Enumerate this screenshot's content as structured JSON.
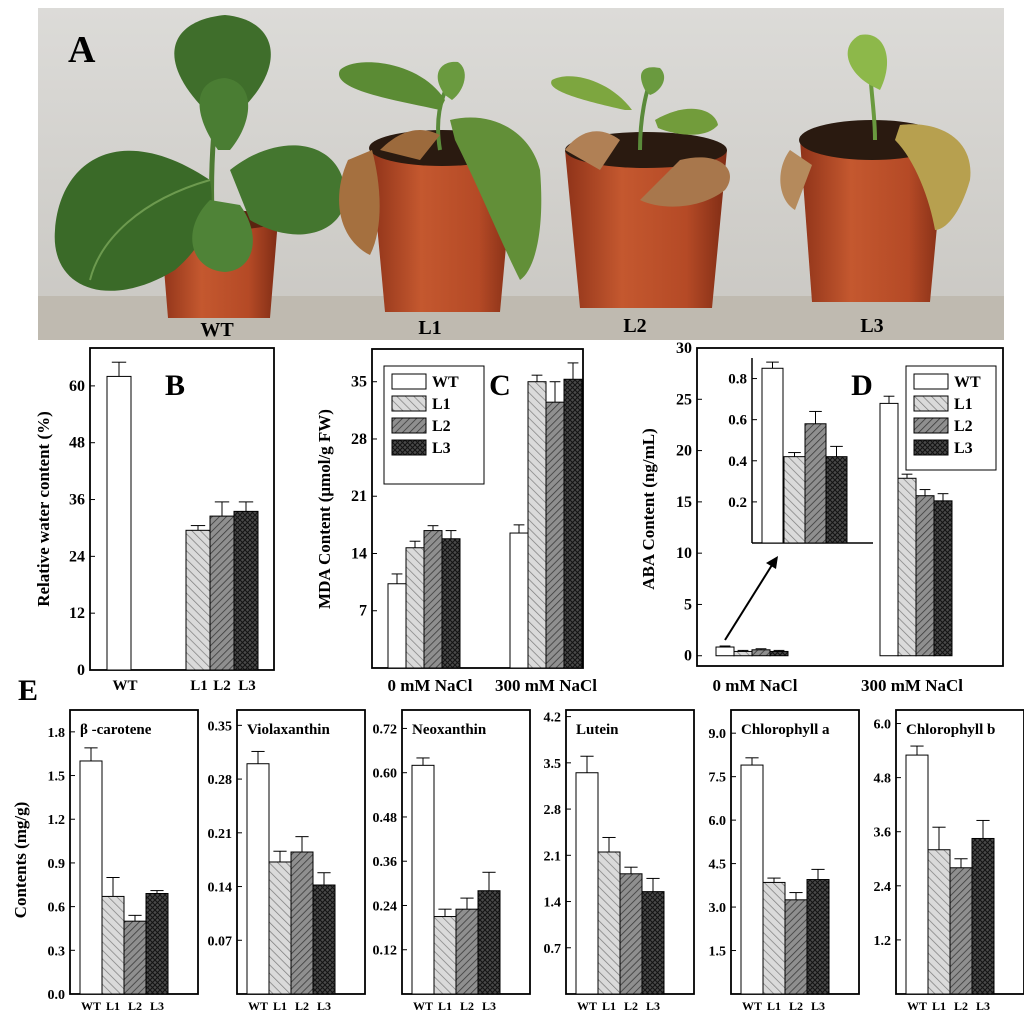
{
  "patterns": {
    "WT": "none",
    "L1": "light-diagonal-hatch",
    "L2": "medium-diagonal-hatch",
    "L3": "dark-crosshatch"
  },
  "colors": {
    "axis": "#000000",
    "wall": "#d4d3cf",
    "bench": "#c8c3b8",
    "pot": "#b84a2a",
    "leaf": "#3e6f2a",
    "dry_leaf": "#a8744a"
  },
  "photo": {
    "panel_label": "A",
    "labels": [
      "WT",
      "L1",
      "L2",
      "L3"
    ]
  },
  "chart_data": [
    {
      "panel": "B",
      "type": "bar",
      "categories": [
        "WT",
        "L1",
        "L2",
        "L3"
      ],
      "values": [
        62,
        29.5,
        32.5,
        33.5
      ],
      "errors": [
        3,
        1,
        3,
        2
      ],
      "ylabel": "Relative water content (%)",
      "ylim": [
        0,
        68
      ],
      "yticks": [
        0,
        12,
        24,
        36,
        48,
        60
      ],
      "grid": false
    },
    {
      "panel": "C",
      "type": "bar",
      "groups": [
        "0  mM  NaCl",
        "300  mM  NaCl"
      ],
      "series": [
        {
          "name": "WT",
          "values": [
            10.3,
            16.5
          ],
          "errors": [
            1.2,
            1
          ]
        },
        {
          "name": "L1",
          "values": [
            14.7,
            35
          ],
          "errors": [
            0.8,
            0.8
          ]
        },
        {
          "name": "L2",
          "values": [
            16.8,
            32.5
          ],
          "errors": [
            0.6,
            2.5
          ]
        },
        {
          "name": "L3",
          "values": [
            15.8,
            35.3
          ],
          "errors": [
            1,
            2
          ]
        }
      ],
      "ylabel": "MDA Content (μmol/g FW)",
      "ylim": [
        0,
        39
      ],
      "yticks": [
        7,
        14,
        21,
        28,
        35
      ],
      "legend": "top-left"
    },
    {
      "panel": "D",
      "type": "bar",
      "groups": [
        "0  mM  NaCl",
        "300  mM  NaCl"
      ],
      "series": [
        {
          "name": "WT",
          "values": [
            0.85,
            24.6
          ],
          "errors": [
            0.1,
            0.7
          ]
        },
        {
          "name": "L1",
          "values": [
            0.42,
            17.3
          ],
          "errors": [
            0.1,
            0.4
          ]
        },
        {
          "name": "L2",
          "values": [
            0.58,
            15.6
          ],
          "errors": [
            0.1,
            0.6
          ]
        },
        {
          "name": "L3",
          "values": [
            0.42,
            15.1
          ],
          "errors": [
            0.1,
            0.7
          ]
        }
      ],
      "ylabel": "ABA Content (ng/mL)",
      "ylim": [
        -1,
        30
      ],
      "yticks": [
        0,
        5,
        10,
        15,
        20,
        25,
        30
      ],
      "legend": "top-right",
      "inset": {
        "categories": [
          "WT",
          "L1",
          "L2",
          "L3"
        ],
        "values": [
          0.85,
          0.42,
          0.58,
          0.42
        ],
        "errors": [
          0.03,
          0.02,
          0.06,
          0.05
        ],
        "ylim": [
          0,
          0.9
        ],
        "yticks": [
          0.2,
          0.4,
          0.6,
          0.8
        ]
      }
    },
    {
      "panel": "E",
      "type": "bar",
      "ylabel": "Contents (mg/g)",
      "categories": [
        "WT",
        "L1",
        "L2",
        "L3"
      ],
      "subplots": [
        {
          "title": "β -carotene",
          "values": [
            1.6,
            0.67,
            0.5,
            0.69
          ],
          "errors": [
            0.09,
            0.13,
            0.04,
            0.02
          ],
          "ylim": [
            0,
            1.95
          ],
          "yticks": [
            0.0,
            0.3,
            0.6,
            0.9,
            1.2,
            1.5,
            1.8
          ],
          "ytick_labels": [
            "0.0",
            "0.3",
            "0.6",
            "0.9",
            "1.2",
            "1.5",
            "1.8"
          ]
        },
        {
          "title": "Violaxanthin",
          "values": [
            0.3,
            0.172,
            0.185,
            0.142
          ],
          "errors": [
            0.016,
            0.014,
            0.02,
            0.016
          ],
          "ylim": [
            0,
            0.37
          ],
          "yticks": [
            0.07,
            0.14,
            0.21,
            0.28,
            0.35
          ],
          "ytick_labels": [
            "0.07",
            "0.14",
            "0.21",
            "0.28",
            "0.35"
          ]
        },
        {
          "title": "Neoxanthin",
          "values": [
            0.62,
            0.21,
            0.23,
            0.28
          ],
          "errors": [
            0.02,
            0.02,
            0.03,
            0.05
          ],
          "ylim": [
            0,
            0.77
          ],
          "yticks": [
            0.12,
            0.24,
            0.36,
            0.48,
            0.6,
            0.72
          ],
          "ytick_labels": [
            "0.12",
            "0.24",
            "0.36",
            "0.48",
            "0.60",
            "0.72"
          ]
        },
        {
          "title": "Lutein",
          "values": [
            3.35,
            2.15,
            1.82,
            1.55
          ],
          "errors": [
            0.25,
            0.22,
            0.1,
            0.2
          ],
          "ylim": [
            0,
            4.3
          ],
          "yticks": [
            0.7,
            1.4,
            2.1,
            2.8,
            3.5,
            4.2
          ],
          "ytick_labels": [
            "0.7",
            "1.4",
            "2.1",
            "2.8",
            "3.5",
            "4.2"
          ]
        },
        {
          "title": "Chlorophyll a",
          "values": [
            7.9,
            3.85,
            3.25,
            3.95
          ],
          "errors": [
            0.25,
            0.15,
            0.25,
            0.35
          ],
          "ylim": [
            0,
            9.8
          ],
          "yticks": [
            1.5,
            3.0,
            4.5,
            6.0,
            7.5,
            9.0
          ],
          "ytick_labels": [
            "1.5",
            "3.0",
            "4.5",
            "6.0",
            "7.5",
            "9.0"
          ]
        },
        {
          "title": "Chlorophyll b",
          "values": [
            5.3,
            3.2,
            2.8,
            3.45
          ],
          "errors": [
            0.2,
            0.5,
            0.2,
            0.4
          ],
          "ylim": [
            0,
            6.3
          ],
          "yticks": [
            1.2,
            2.4,
            3.6,
            4.8,
            6.0
          ],
          "ytick_labels": [
            "1.2",
            "2.4",
            "3.6",
            "4.8",
            "6.0"
          ]
        }
      ]
    }
  ]
}
